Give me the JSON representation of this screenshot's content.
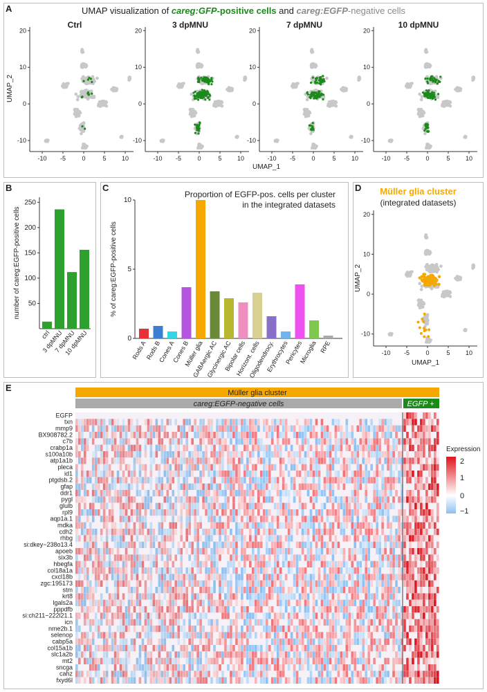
{
  "panel_labels": {
    "a": "A",
    "b": "B",
    "c": "C",
    "d": "D",
    "e": "E"
  },
  "panel_a": {
    "title_parts": [
      "UMAP visualization of ",
      "careg:GFP",
      "-positive cells",
      " and ",
      "careg:EGFP",
      "-negative cells"
    ],
    "ylabel": "UMAP_2",
    "xlabel": "UMAP_1",
    "subpanels": [
      "Ctrl",
      "3 dpMNU",
      "7 dpMNU",
      "10 dpMNU"
    ],
    "yticks": [
      "20",
      "10",
      "0",
      "-10"
    ],
    "xticks": [
      "-10",
      "-5",
      "0",
      "5",
      "10"
    ]
  },
  "chart_data": [
    {
      "panel": "B",
      "type": "bar",
      "categories": [
        "ctrl",
        "3 dpMNU",
        "7 dpMNU",
        "10 dpMNU"
      ],
      "values": [
        14,
        236,
        112,
        156
      ],
      "ylabel": "number of careg:EGFP-positive cells",
      "yticks": [
        50,
        100,
        150,
        200,
        250
      ],
      "ylim": [
        0,
        260
      ],
      "color": "#2ea02e"
    },
    {
      "panel": "C",
      "type": "bar",
      "title": "Proportion of EGFP-pos. cells per cluster in the integrated datasets",
      "ylabel": "% of careg:EGFP-positive cells",
      "categories": [
        "Rods A",
        "Rods B",
        "Cones A",
        "Cones B",
        "Müller glia",
        "GABAergic AC",
        "Glycinergic AC",
        "Bipolar cells",
        "Horizont. cells",
        "Oligodendrocy.",
        "Erythrocytes",
        "Pericytes",
        "Microglia",
        "RPE"
      ],
      "values": [
        0.7,
        0.9,
        0.5,
        3.7,
        10.0,
        3.4,
        2.9,
        2.6,
        3.3,
        1.6,
        0.5,
        3.9,
        1.3,
        0.2
      ],
      "colors": [
        "#e8303a",
        "#3a7fd0",
        "#33d6e6",
        "#b455e0",
        "#f5a800",
        "#6a8a3a",
        "#b8b830",
        "#ef8fbf",
        "#d8d090",
        "#8a6fc6",
        "#70b4f0",
        "#f050f0",
        "#7ec850",
        "#aaaaaa"
      ],
      "yticks": [
        0,
        5,
        10
      ],
      "ylim": [
        0,
        10
      ]
    }
  ],
  "panel_d": {
    "title": "Müller glia cluster",
    "subtitle": "(integrated datasets)",
    "ylabel": "UMAP_2",
    "xlabel": "UMAP_1",
    "yticks": [
      "20",
      "10",
      "0",
      "-10"
    ],
    "xticks": [
      "-10",
      "-5",
      "0",
      "5",
      "10"
    ]
  },
  "panel_e": {
    "top_bar": "Müller glia cluster",
    "neg_bar_label": "careg:EGFP-negative cells",
    "pos_bar_label": "EGFP +",
    "genes": [
      "EGFP",
      "txn",
      "mmp9",
      "BX908782.2",
      "c7b",
      "crabp1a",
      "s100a10b",
      "atp1a1b",
      "pleca",
      "id1",
      "ptgdsb.2",
      "gfap",
      "ddr1",
      "pygl",
      "glulb",
      "rpl9",
      "aqp1a.1",
      "mdka",
      "cdh2",
      "rhbg",
      "si:dkey−238o13.4",
      "apoeb",
      "six3b",
      "hbegfa",
      "col18a1a",
      "cxcl18b",
      "zgc:195173",
      "stm",
      "krt8",
      "lgals2a",
      "pppdfb",
      "si:ch211−222l21.1",
      "icn",
      "nme2b.1",
      "selenop",
      "cabp5a",
      "col15a1b",
      "slc1a2b",
      "mt2",
      "sncga",
      "cahz",
      "fxyd6l"
    ],
    "legend_title": "Expression",
    "legend_ticks": [
      "2",
      "1",
      "0",
      "−1"
    ]
  },
  "colors": {
    "egfp_green": "#1a8a1a",
    "muller_orange": "#f5a800",
    "umap_grey": "#c8c8c8",
    "heat_high": "#e0141e",
    "heat_low": "#8ec0f0"
  }
}
